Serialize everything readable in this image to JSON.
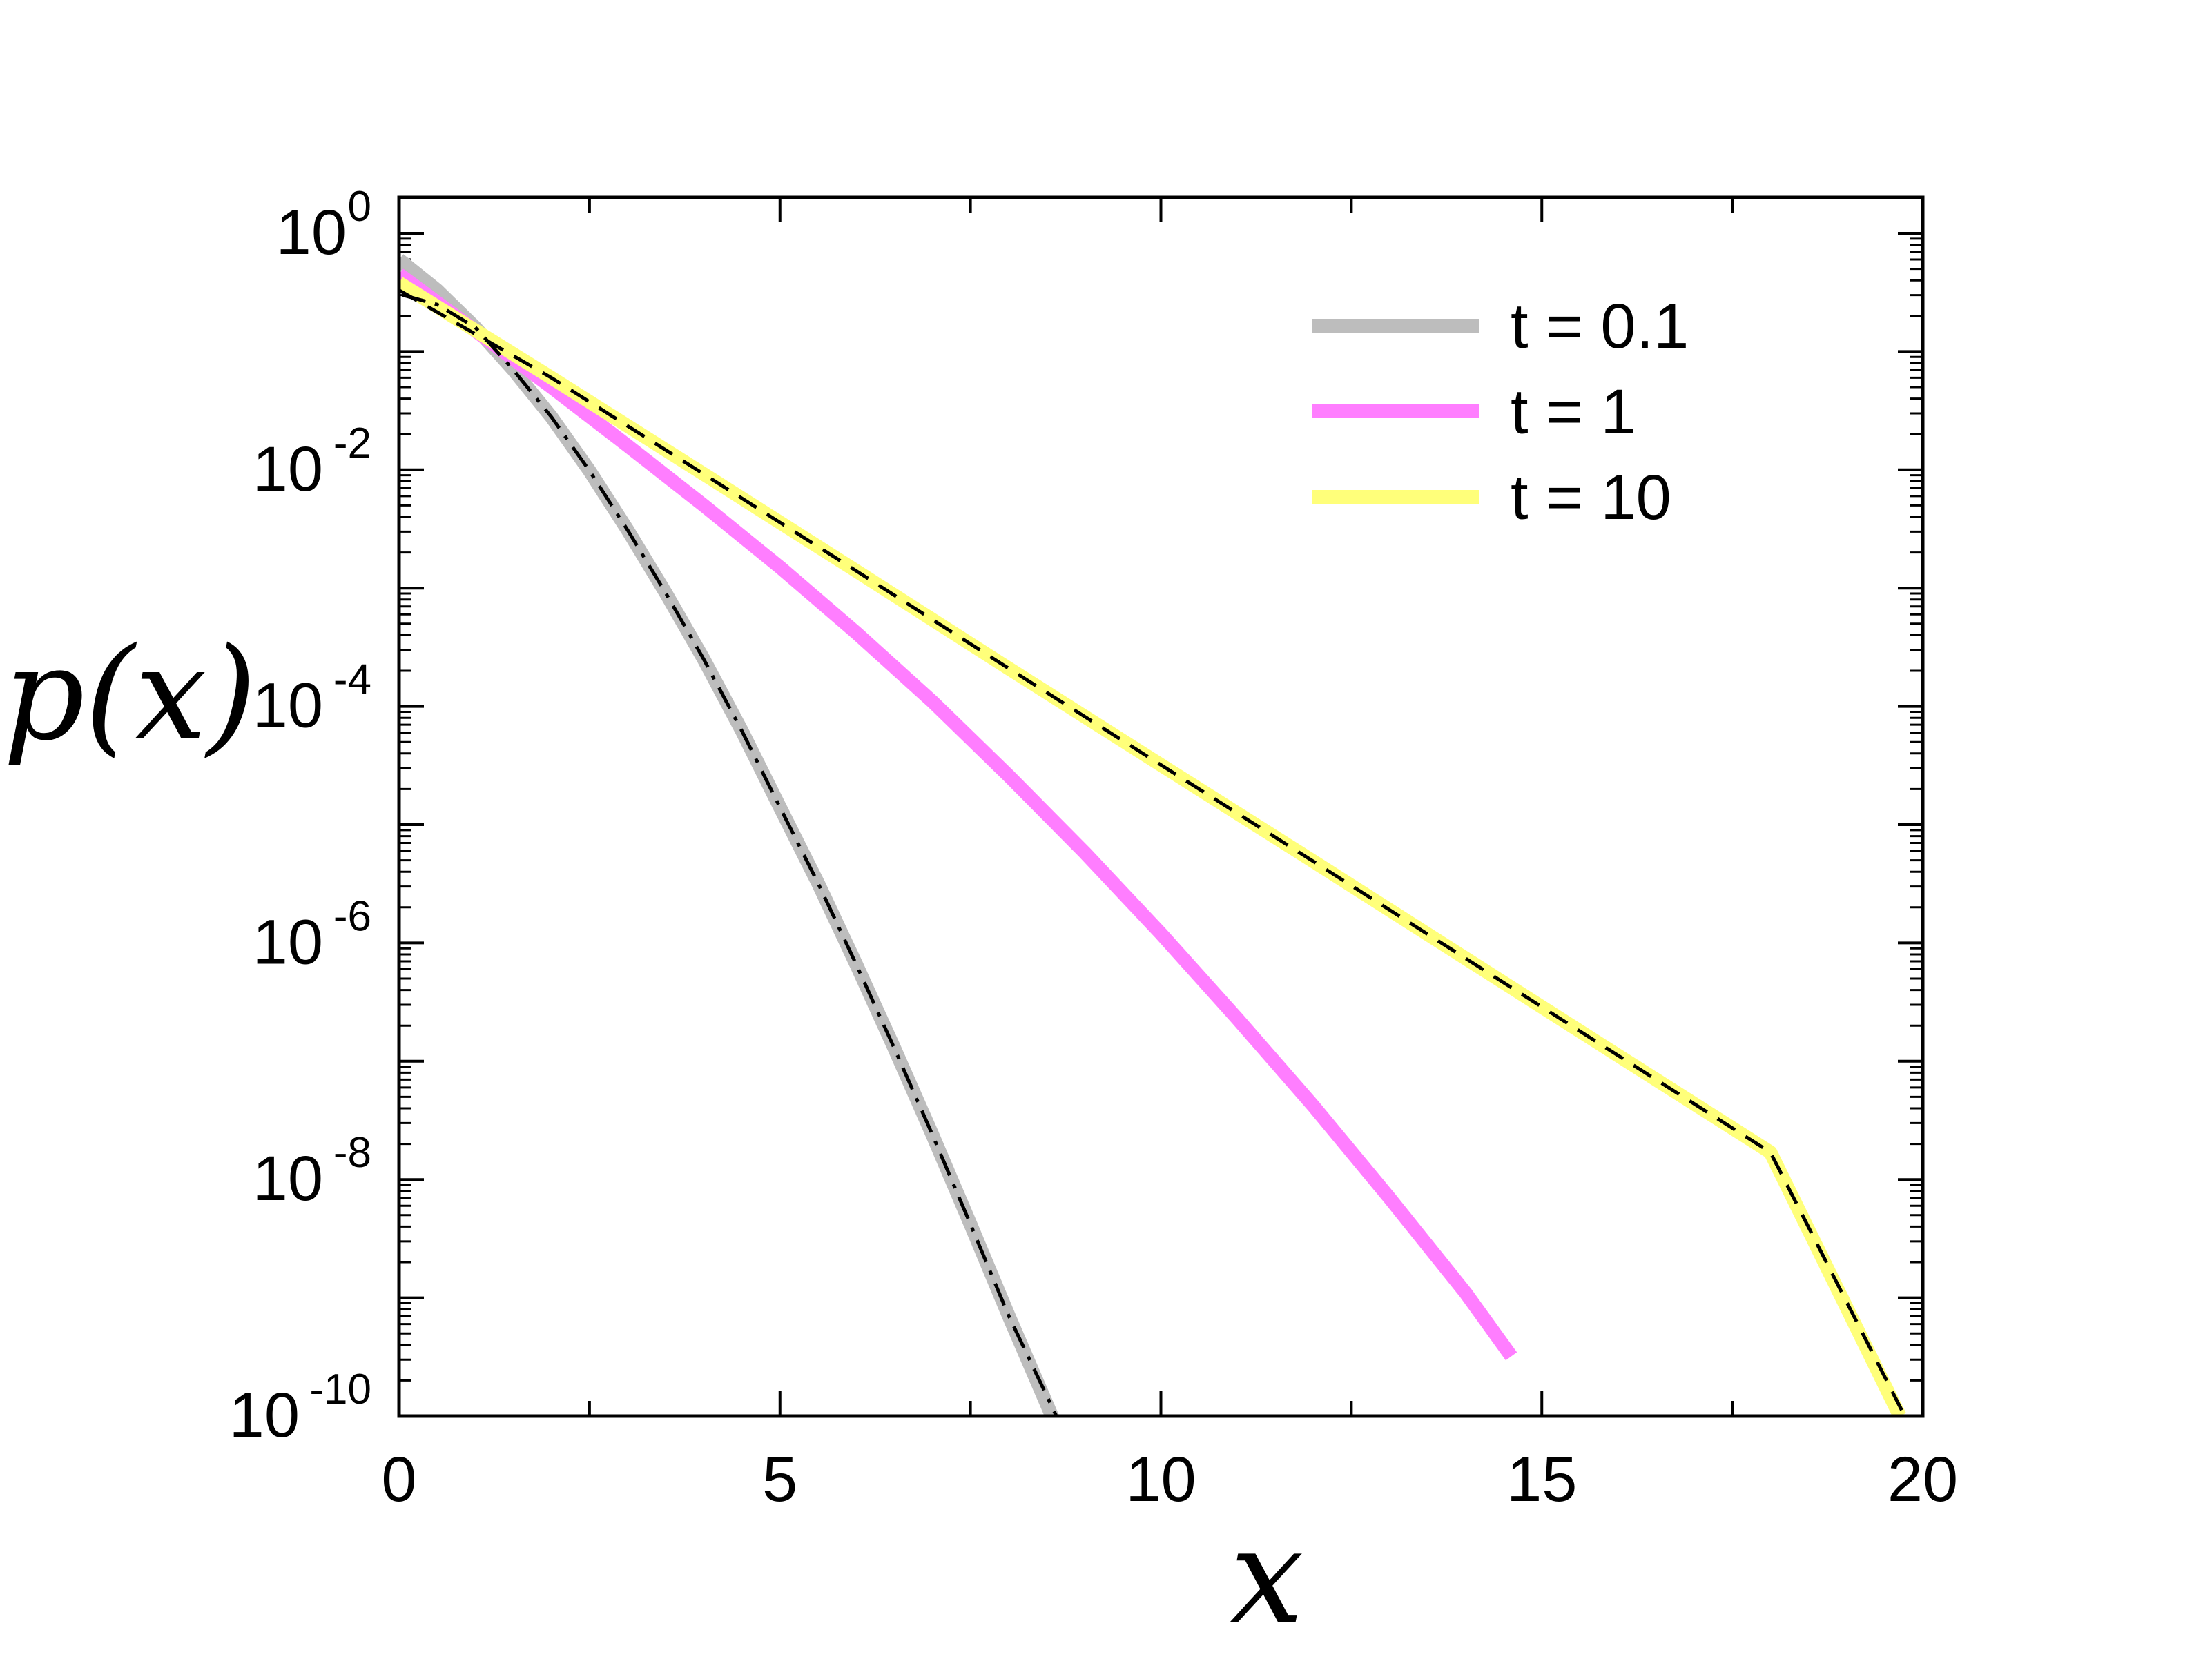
{
  "chart_data": {
    "type": "line",
    "xlabel": "x",
    "ylabel": "p(x)",
    "xlim": [
      0,
      20
    ],
    "ylim": [
      1e-10,
      1
    ],
    "yscale": "log",
    "x_ticks": [
      0,
      5,
      10,
      15,
      20
    ],
    "x_tick_labels": [
      "0",
      "5",
      "10",
      "15",
      "20"
    ],
    "y_ticks": [
      1e-10,
      1e-08,
      1e-06,
      0.0001,
      0.01,
      1
    ],
    "y_tick_labels": [
      {
        "base": "10",
        "exp": "-10"
      },
      {
        "base": "10",
        "exp": "-8"
      },
      {
        "base": "10",
        "exp": "-6"
      },
      {
        "base": "10",
        "exp": "-4"
      },
      {
        "base": "10",
        "exp": "-2"
      },
      {
        "base": "10",
        "exp": "0"
      }
    ],
    "grid": false,
    "legend_position": "top-right",
    "series": [
      {
        "name": "t = 0.1",
        "color": "#bdbdbd",
        "x": [
          0,
          0.5,
          1,
          1.5,
          2,
          2.5,
          3,
          3.5,
          4,
          4.5,
          5,
          5.5,
          6,
          6.5,
          7,
          7.5,
          8,
          8.6
        ],
        "y": [
          0.6,
          0.33,
          0.16,
          0.07,
          0.028,
          0.0098,
          0.0031,
          0.00091,
          0.00025,
          6.2e-05,
          1.4e-05,
          3.2e-06,
          6.6e-07,
          1.29e-07,
          2.4e-08,
          4.2e-09,
          7.1e-10,
          9e-11
        ]
      },
      {
        "name": "t = 1",
        "color": "#ff7eff",
        "x": [
          0,
          1,
          2,
          3,
          4,
          5,
          6,
          7,
          8,
          9,
          10,
          11,
          12,
          13,
          14,
          14.6
        ],
        "y": [
          0.45,
          0.15,
          0.05,
          0.016,
          0.005,
          0.0015,
          0.00042,
          0.00011,
          2.6e-05,
          5.8e-06,
          1.2e-06,
          2.3e-07,
          4.2e-08,
          7e-09,
          1.1e-09,
          3.2e-10
        ]
      },
      {
        "name": "t = 10",
        "color": "#ffff7a",
        "x": [
          0,
          2,
          4,
          6,
          8,
          10,
          12,
          14,
          16,
          18,
          19.7
        ],
        "y": [
          0.38,
          0.06,
          0.0092,
          0.0014,
          0.00021,
          3.2e-05,
          4.9e-06,
          7.4e-07,
          1.12e-07,
          1.7e-08,
          1e-10
        ]
      }
    ],
    "reference_curves": [
      {
        "style": "dash-dot",
        "color": "#000000",
        "x": [
          0.05,
          0.5,
          1,
          1.5,
          2,
          2.5,
          3,
          3.5,
          4,
          4.5,
          5,
          5.5,
          6,
          6.5,
          7,
          7.5,
          8,
          8.7
        ],
        "y": [
          0.3,
          0.25,
          0.16,
          0.07,
          0.028,
          0.0098,
          0.0031,
          0.00091,
          0.00025,
          6.2e-05,
          1.4e-05,
          3.2e-06,
          6.6e-07,
          1.29e-07,
          2.4e-08,
          4.2e-09,
          7.1e-10,
          8e-11
        ]
      },
      {
        "style": "dashed",
        "color": "#000000",
        "x": [
          0,
          2,
          4,
          6,
          8,
          10,
          12,
          14,
          16,
          18,
          19.8
        ],
        "y": [
          0.33,
          0.06,
          0.0092,
          0.0014,
          0.00021,
          3.2e-05,
          4.9e-06,
          7.4e-07,
          1.12e-07,
          1.7e-08,
          9e-11
        ]
      }
    ]
  }
}
